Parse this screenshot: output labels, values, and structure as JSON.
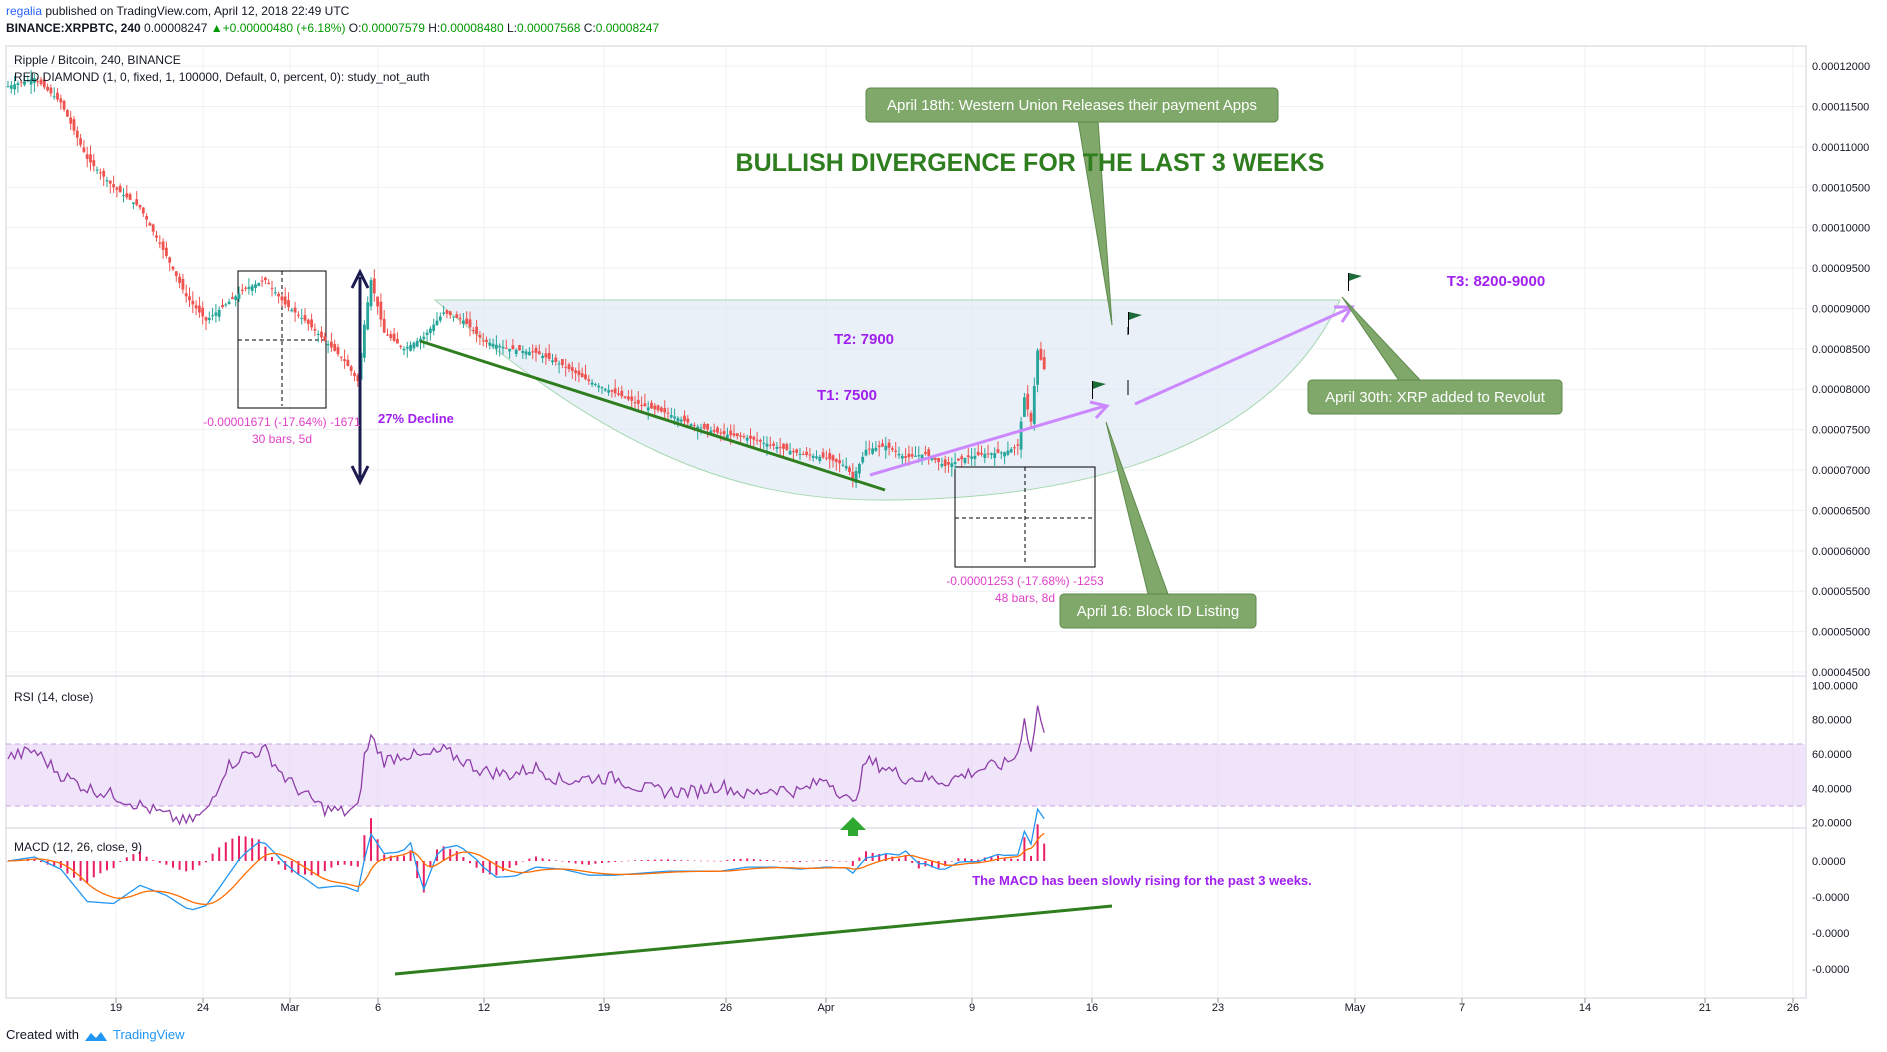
{
  "header": {
    "author": "regalia",
    "published_text": "published on TradingView.com, April 12, 2018 22:49 UTC",
    "symbol": "BINANCE:XRPBTC, 240",
    "last_price": "0.00008247",
    "change": "▲+0.00000480 (+6.18%)",
    "o_label": "O:",
    "o_val": "0.00007579",
    "h_label": "H:",
    "h_val": "0.00008480",
    "l_label": "L:",
    "l_val": "0.00007568",
    "c_label": "C:",
    "c_val": "0.00008247"
  },
  "footer": {
    "created_with": "Created with",
    "brand": "TradingView"
  },
  "chart_data": {
    "type": "candlestick",
    "main_pane": {
      "title": "Ripple / Bitcoin, 240, BINANCE",
      "indicator": "RED DIAMOND (1, 0, fixed, 1, 100000, Default, 0, percent, 0): study_not_auth",
      "y_ticks": [
        "0.00012000",
        "0.00011500",
        "0.00011000",
        "0.00010500",
        "0.00010000",
        "0.00009500",
        "0.00009000",
        "0.00008500",
        "0.00008000",
        "0.00007500",
        "0.00007000",
        "0.00006500",
        "0.00006000",
        "0.00005500",
        "0.00005000",
        "0.00004500"
      ],
      "ylim": [
        4.5e-05,
        0.000121
      ],
      "x_ticks": [
        "19",
        "24",
        "Mar",
        "6",
        "12",
        "19",
        "26",
        "Apr",
        "9",
        "16",
        "23",
        "May",
        "7",
        "14",
        "21",
        "26"
      ],
      "price_series": [
        [
          0,
          0.0001175
        ],
        [
          4,
          0.0001185
        ],
        [
          8,
          0.0001155
        ],
        [
          12,
          0.0001085
        ],
        [
          16,
          0.000105
        ],
        [
          20,
          0.0001025
        ],
        [
          24,
          9.65e-05
        ],
        [
          27,
          9.15e-05
        ],
        [
          30,
          8.85e-05
        ],
        [
          33,
          9.05e-05
        ],
        [
          36,
          9.25e-05
        ],
        [
          39,
          9.35e-05
        ],
        [
          42,
          9.05e-05
        ],
        [
          45,
          8.85e-05
        ],
        [
          48,
          8.6e-05
        ],
        [
          51,
          8.35e-05
        ],
        [
          53,
          8.1e-05
        ],
        [
          54,
          8.8e-05
        ],
        [
          55,
          9.35e-05
        ],
        [
          57,
          8.7e-05
        ],
        [
          60,
          8.5e-05
        ],
        [
          63,
          8.65e-05
        ],
        [
          66,
          8.95e-05
        ],
        [
          69,
          8.85e-05
        ],
        [
          72,
          8.6e-05
        ],
        [
          76,
          8.5e-05
        ],
        [
          80,
          8.45e-05
        ],
        [
          84,
          8.3e-05
        ],
        [
          88,
          8.1e-05
        ],
        [
          92,
          7.95e-05
        ],
        [
          96,
          7.8e-05
        ],
        [
          100,
          7.7e-05
        ],
        [
          104,
          7.55e-05
        ],
        [
          108,
          7.45e-05
        ],
        [
          112,
          7.4e-05
        ],
        [
          116,
          7.3e-05
        ],
        [
          120,
          7.2e-05
        ],
        [
          124,
          7.15e-05
        ],
        [
          127,
          7.05e-05
        ],
        [
          128,
          6.9e-05
        ],
        [
          130,
          7.25e-05
        ],
        [
          133,
          7.3e-05
        ],
        [
          136,
          7.15e-05
        ],
        [
          139,
          7.2e-05
        ],
        [
          142,
          7.05e-05
        ],
        [
          145,
          7.15e-05
        ],
        [
          148,
          7.2e-05
        ],
        [
          151,
          7.22e-05
        ],
        [
          153,
          7.3e-05
        ],
        [
          154,
          7.9e-05
        ],
        [
          155,
          7.6e-05
        ],
        [
          156,
          8.48e-05
        ],
        [
          157,
          8.25e-05
        ]
      ],
      "annotations": [
        {
          "text": "BULLISH DIVERGENCE FOR THE LAST 3 WEEKS",
          "color": "#2e7d1e"
        },
        {
          "text": "T1: 7500",
          "color": "#a020f0"
        },
        {
          "text": "T2: 7900",
          "color": "#a020f0"
        },
        {
          "text": "T3: 8200-9000",
          "color": "#a020f0"
        },
        {
          "text": "27%  Decline",
          "color": "#a020f0"
        },
        {
          "text": "-0.00001671 (-17.64%) -1671",
          "color": "#e040c8"
        },
        {
          "text": "30 bars, 5d",
          "color": "#e040c8"
        },
        {
          "text": "-0.00001253 (-17.68%) -1253",
          "color": "#e040c8"
        },
        {
          "text": "48 bars, 8d",
          "color": "#e040c8"
        }
      ],
      "callouts": [
        {
          "text": "April 18th: Western Union Releases their payment Apps"
        },
        {
          "text": "April 16: Block ID Listing"
        },
        {
          "text": "April 30th: XRP added to Revolut"
        }
      ]
    },
    "rsi_pane": {
      "title": "RSI (14, close)",
      "y_ticks": [
        "100.0000",
        "80.0000",
        "60.0000",
        "40.0000",
        "20.0000"
      ],
      "ylim": [
        18,
        102
      ],
      "band": [
        30,
        70
      ],
      "series": [
        [
          0,
          58
        ],
        [
          4,
          62
        ],
        [
          8,
          48
        ],
        [
          12,
          40
        ],
        [
          16,
          36
        ],
        [
          20,
          30
        ],
        [
          24,
          24
        ],
        [
          27,
          20
        ],
        [
          30,
          26
        ],
        [
          33,
          52
        ],
        [
          36,
          60
        ],
        [
          39,
          62
        ],
        [
          42,
          46
        ],
        [
          45,
          36
        ],
        [
          48,
          28
        ],
        [
          51,
          26
        ],
        [
          53,
          28
        ],
        [
          54,
          58
        ],
        [
          55,
          70
        ],
        [
          57,
          56
        ],
        [
          60,
          60
        ],
        [
          63,
          58
        ],
        [
          66,
          62
        ],
        [
          69,
          56
        ],
        [
          72,
          50
        ],
        [
          76,
          48
        ],
        [
          80,
          52
        ],
        [
          84,
          44
        ],
        [
          88,
          46
        ],
        [
          92,
          46
        ],
        [
          96,
          40
        ],
        [
          100,
          38
        ],
        [
          104,
          38
        ],
        [
          108,
          42
        ],
        [
          112,
          36
        ],
        [
          116,
          40
        ],
        [
          120,
          38
        ],
        [
          124,
          46
        ],
        [
          127,
          34
        ],
        [
          128,
          30
        ],
        [
          130,
          56
        ],
        [
          133,
          52
        ],
        [
          136,
          46
        ],
        [
          139,
          46
        ],
        [
          142,
          44
        ],
        [
          145,
          48
        ],
        [
          148,
          52
        ],
        [
          151,
          54
        ],
        [
          153,
          60
        ],
        [
          154,
          82
        ],
        [
          155,
          60
        ],
        [
          156,
          88
        ],
        [
          157,
          70
        ]
      ]
    },
    "macd_pane": {
      "title": "MACD (12, 26, close, 9)",
      "y_ticks": [
        "0.0000",
        "-0.0000",
        "-0.0000",
        "-0.0000"
      ],
      "note": "The MACD has been slowly rising for the past 3 weeks.",
      "note_color": "#a020f0",
      "macd_color": "#2196f3",
      "signal_color": "#ff6d00",
      "hist_color": "#e91e63"
    }
  },
  "colors": {
    "candle_up": "#26a69a",
    "candle_down": "#ef5350",
    "trend_green": "#2e7d1e",
    "arrow_violet": "#cc88ff",
    "callout_bg": "#7fa86a",
    "cup_fill": "#dde8f4"
  }
}
